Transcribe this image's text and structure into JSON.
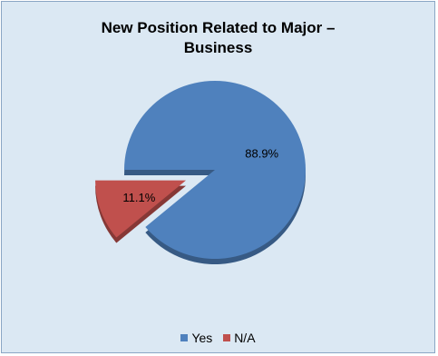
{
  "chart_data": {
    "type": "pie",
    "title_lines": [
      "New Position Related to Major –",
      "Business"
    ],
    "slices": [
      {
        "label": "Yes",
        "value": 88.9,
        "display": "88.9%",
        "color": "#4f81bd"
      },
      {
        "label": "N/A",
        "value": 11.1,
        "display": "11.1%",
        "color": "#c0504d"
      }
    ],
    "exploded": "N/A",
    "style": "3d",
    "legend_position": "bottom"
  }
}
